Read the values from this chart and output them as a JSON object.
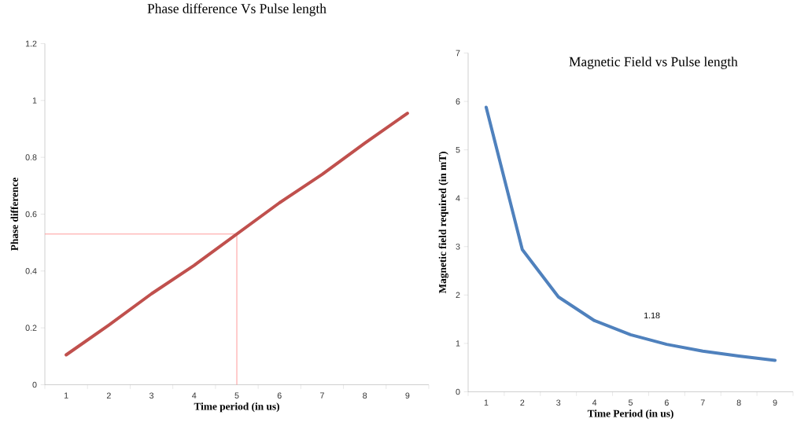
{
  "chart_data": [
    {
      "type": "line",
      "title": "Phase difference Vs Pulse length",
      "xlabel": "Time period (in us)",
      "ylabel": "Phase difference",
      "x": [
        1,
        2,
        3,
        4,
        5,
        6,
        7,
        8,
        9
      ],
      "values": [
        0.105,
        0.21,
        0.32,
        0.42,
        0.53,
        0.64,
        0.74,
        0.85,
        0.955
      ],
      "color": "#c0504d",
      "xlim": [
        0.5,
        9.5
      ],
      "xticks": [
        1,
        2,
        3,
        4,
        5,
        6,
        7,
        8,
        9
      ],
      "ylim": [
        0,
        1.2
      ],
      "yticks": [
        0,
        0.2,
        0.4,
        0.6,
        0.8,
        1,
        1.2
      ],
      "ref_lines": [
        {
          "axis": "y",
          "value": 0.53,
          "color": "#ff8080"
        },
        {
          "axis": "x",
          "value": 5,
          "color": "#ff8080"
        }
      ]
    },
    {
      "type": "line",
      "title": "Magnetic Field vs Pulse length",
      "xlabel": "Time Period (in us)",
      "ylabel": "Magnetic field required (in mT)",
      "x": [
        1,
        2,
        3,
        4,
        5,
        6,
        7,
        8,
        9
      ],
      "values": [
        5.88,
        2.94,
        1.96,
        1.47,
        1.18,
        0.98,
        0.84,
        0.74,
        0.65
      ],
      "color": "#4f81bd",
      "xlim": [
        0.5,
        9.5
      ],
      "xticks": [
        1,
        2,
        3,
        4,
        5,
        6,
        7,
        8,
        9
      ],
      "ylim": [
        0,
        7
      ],
      "yticks": [
        0,
        1,
        2,
        3,
        4,
        5,
        6,
        7
      ],
      "annotations": [
        {
          "text": "1.18",
          "x": 5,
          "y": 1.18
        }
      ]
    }
  ]
}
